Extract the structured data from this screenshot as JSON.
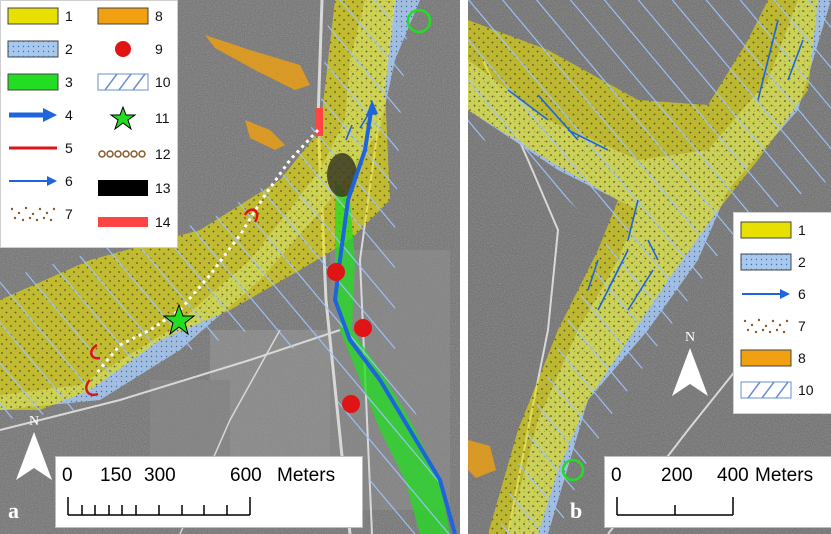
{
  "panels": [
    {
      "letter": "a",
      "north": "N",
      "scale": {
        "ticks": [
          "0",
          "150",
          "300",
          "600"
        ],
        "unit": "Meters"
      }
    },
    {
      "letter": "b",
      "north": "N",
      "scale": {
        "ticks": [
          "0",
          "200",
          "400"
        ],
        "unit": "Meters"
      }
    }
  ],
  "legend_a": {
    "items": [
      {
        "label": "1",
        "symbol": "yellow-fill"
      },
      {
        "label": "2",
        "symbol": "light-blue-dotted-fill"
      },
      {
        "label": "3",
        "symbol": "green-fill"
      },
      {
        "label": "4",
        "symbol": "thick-blue-arrow"
      },
      {
        "label": "5",
        "symbol": "red-line"
      },
      {
        "label": "6",
        "symbol": "thin-blue-arrow"
      },
      {
        "label": "7",
        "symbol": "brown-dots"
      },
      {
        "label": "8",
        "symbol": "orange-fill"
      },
      {
        "label": "9",
        "symbol": "red-circle"
      },
      {
        "label": "10",
        "symbol": "blue-hatch-box"
      },
      {
        "label": "11",
        "symbol": "green-star"
      },
      {
        "label": "12",
        "symbol": "brown-ring-line"
      },
      {
        "label": "13",
        "symbol": "black-fill"
      },
      {
        "label": "14",
        "symbol": "thick-red-bar"
      }
    ]
  },
  "legend_b": {
    "items": [
      {
        "label": "1",
        "symbol": "yellow-fill"
      },
      {
        "label": "2",
        "symbol": "light-blue-dotted-fill"
      },
      {
        "label": "6",
        "symbol": "thin-blue-arrow"
      },
      {
        "label": "7",
        "symbol": "brown-dots"
      },
      {
        "label": "8",
        "symbol": "orange-fill"
      },
      {
        "label": "10",
        "symbol": "blue-hatch-box"
      }
    ]
  },
  "colors": {
    "yellow": "#e8e000",
    "light_blue": "#a9c8ee",
    "green": "#22dd22",
    "blue": "#1e64dc",
    "red": "#e01414",
    "orange": "#f0a010",
    "brown": "#8b5a2b",
    "bright_red": "#ff4444"
  }
}
